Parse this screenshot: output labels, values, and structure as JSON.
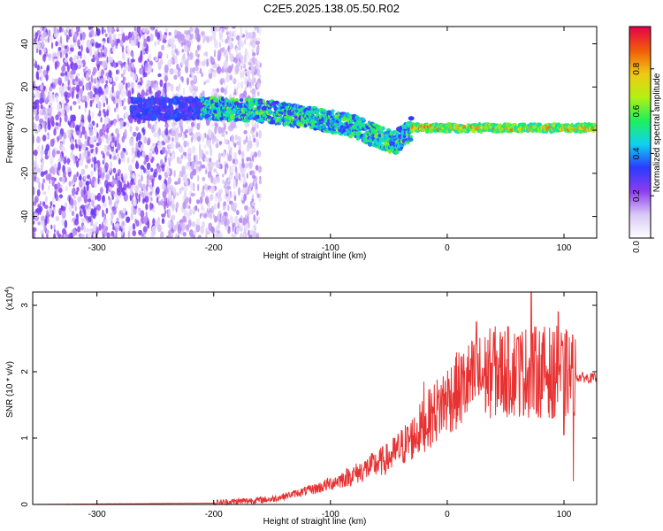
{
  "title": "C2E5.2025.138.05.50.R02",
  "chart_data": [
    {
      "type": "heatmap",
      "xlabel": "Height of straight line (km)",
      "ylabel": "Frequency (Hz)",
      "xlim": [
        -355,
        128
      ],
      "ylim": [
        -50,
        48
      ],
      "xticks": [
        -300,
        -200,
        -100,
        0,
        100
      ],
      "yticks": [
        -40,
        -20,
        0,
        20,
        40
      ],
      "colorbar": {
        "label": "Normalized spectral amplitude",
        "range": [
          0.0,
          1.0
        ],
        "ticks": [
          0.0,
          0.2,
          0.4,
          0.6,
          0.8
        ],
        "tick_labels": [
          "0.0",
          "0.2",
          "0.4",
          "0.6",
          "0.8"
        ],
        "colors": [
          "#ffffff",
          "#d9c8f5",
          "#8c3cf0",
          "#2a3cff",
          "#0fd2f0",
          "#1ef05a",
          "#b4f014",
          "#f0c814",
          "#f05a0a",
          "#e6004b"
        ]
      },
      "features": [
        {
          "region": "noise",
          "x_range": [
            -355,
            -160
          ],
          "y_range": [
            -50,
            48
          ],
          "amplitude": 0.15
        },
        {
          "region": "ridge",
          "points": [
            [
              -270,
              10
            ],
            [
              -205,
              10
            ],
            [
              -160,
              9
            ],
            [
              -120,
              6
            ],
            [
              -80,
              2
            ],
            [
              -60,
              -3
            ],
            [
              -45,
              -6
            ],
            [
              -38,
              -3
            ],
            [
              -30,
              1
            ],
            [
              0,
              1
            ],
            [
              128,
              1
            ]
          ],
          "amplitude_range": [
            0.25,
            0.9
          ]
        }
      ]
    },
    {
      "type": "line",
      "xlabel": "Height of straight line (km)",
      "ylabel": "SNR (10 * v/v)",
      "y_multiplier": "(x10",
      "y_multiplier_exp": "4",
      "y_multiplier_close": ")",
      "xlim": [
        -355,
        128
      ],
      "ylim": [
        0,
        3.2
      ],
      "xticks": [
        -300,
        -200,
        -100,
        0,
        100
      ],
      "yticks": [
        0,
        1,
        2,
        3
      ],
      "series": [
        {
          "color": "#e83232",
          "envelope": [
            [
              -355,
              0.0
            ],
            [
              -200,
              0.02
            ],
            [
              -150,
              0.08
            ],
            [
              -110,
              0.25
            ],
            [
              -80,
              0.45
            ],
            [
              -50,
              0.7
            ],
            [
              -30,
              1.0
            ],
            [
              -15,
              1.3
            ],
            [
              0,
              1.6
            ],
            [
              20,
              1.85
            ],
            [
              40,
              2.0
            ],
            [
              60,
              2.0
            ],
            [
              80,
              2.0
            ],
            [
              95,
              2.0
            ],
            [
              105,
              1.95
            ],
            [
              110,
              1.92
            ],
            [
              128,
              1.9
            ]
          ],
          "peaks": [
            [
              -20,
              1.85
            ],
            [
              25,
              2.75
            ],
            [
              40,
              2.6
            ],
            [
              60,
              2.5
            ],
            [
              72,
              3.2
            ],
            [
              95,
              2.9
            ],
            [
              108,
              2.95
            ],
            [
              108,
              0.35
            ],
            [
              100,
              1.05
            ],
            [
              90,
              1.3
            ]
          ]
        }
      ]
    }
  ]
}
